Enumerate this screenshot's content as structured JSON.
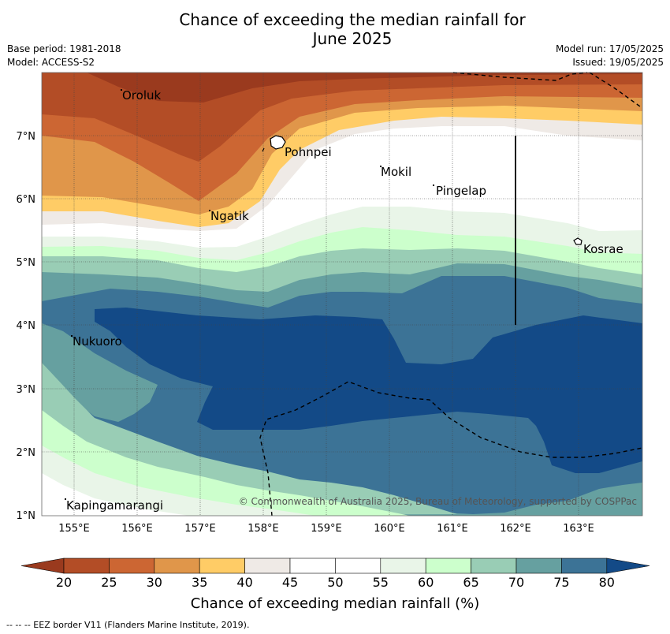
{
  "title": {
    "line1": "Chance of exceeding the median rainfall for",
    "line2": "June 2025"
  },
  "meta": {
    "base_period": "Base period: 1981-2018",
    "model": "Model: ACCESS-S2",
    "model_run": "Model run: 17/05/2025",
    "issued": "Issued: 19/05/2025"
  },
  "map": {
    "lat_labels": [
      "7°N",
      "6°N",
      "5°N",
      "4°N",
      "3°N",
      "2°N",
      "1°N"
    ],
    "lon_labels": [
      "155°E",
      "156°E",
      "157°E",
      "158°E",
      "159°E",
      "160°E",
      "161°E",
      "162°E",
      "163°E"
    ],
    "places": [
      "Oroluk",
      "Pohnpei",
      "Mokil",
      "Pingelap",
      "Ngatik",
      "Kosrae",
      "Nukuoro",
      "Kapingamarangi"
    ],
    "copyright": "© Commonwealth of Australia 2025, Bureau of Meteorology, supported by COSPPac"
  },
  "colorbar": {
    "ticks": [
      "20",
      "25",
      "30",
      "35",
      "40",
      "45",
      "50",
      "55",
      "60",
      "65",
      "70",
      "75",
      "80"
    ],
    "colors": [
      "#9a3a1e",
      "#b34d26",
      "#cc6633",
      "#e0964a",
      "#ffcc66",
      "#efeae6",
      "#ffffff",
      "#ffffff",
      "#e9f5e8",
      "#ccffcc",
      "#99cdb5",
      "#66a0a0",
      "#3c7396",
      "#134a87"
    ],
    "label": "Chance of exceeding median rainfall (%)"
  },
  "footnote": "--  --  -- EEZ border V11 (Flanders Marine Institute, 2019)."
}
